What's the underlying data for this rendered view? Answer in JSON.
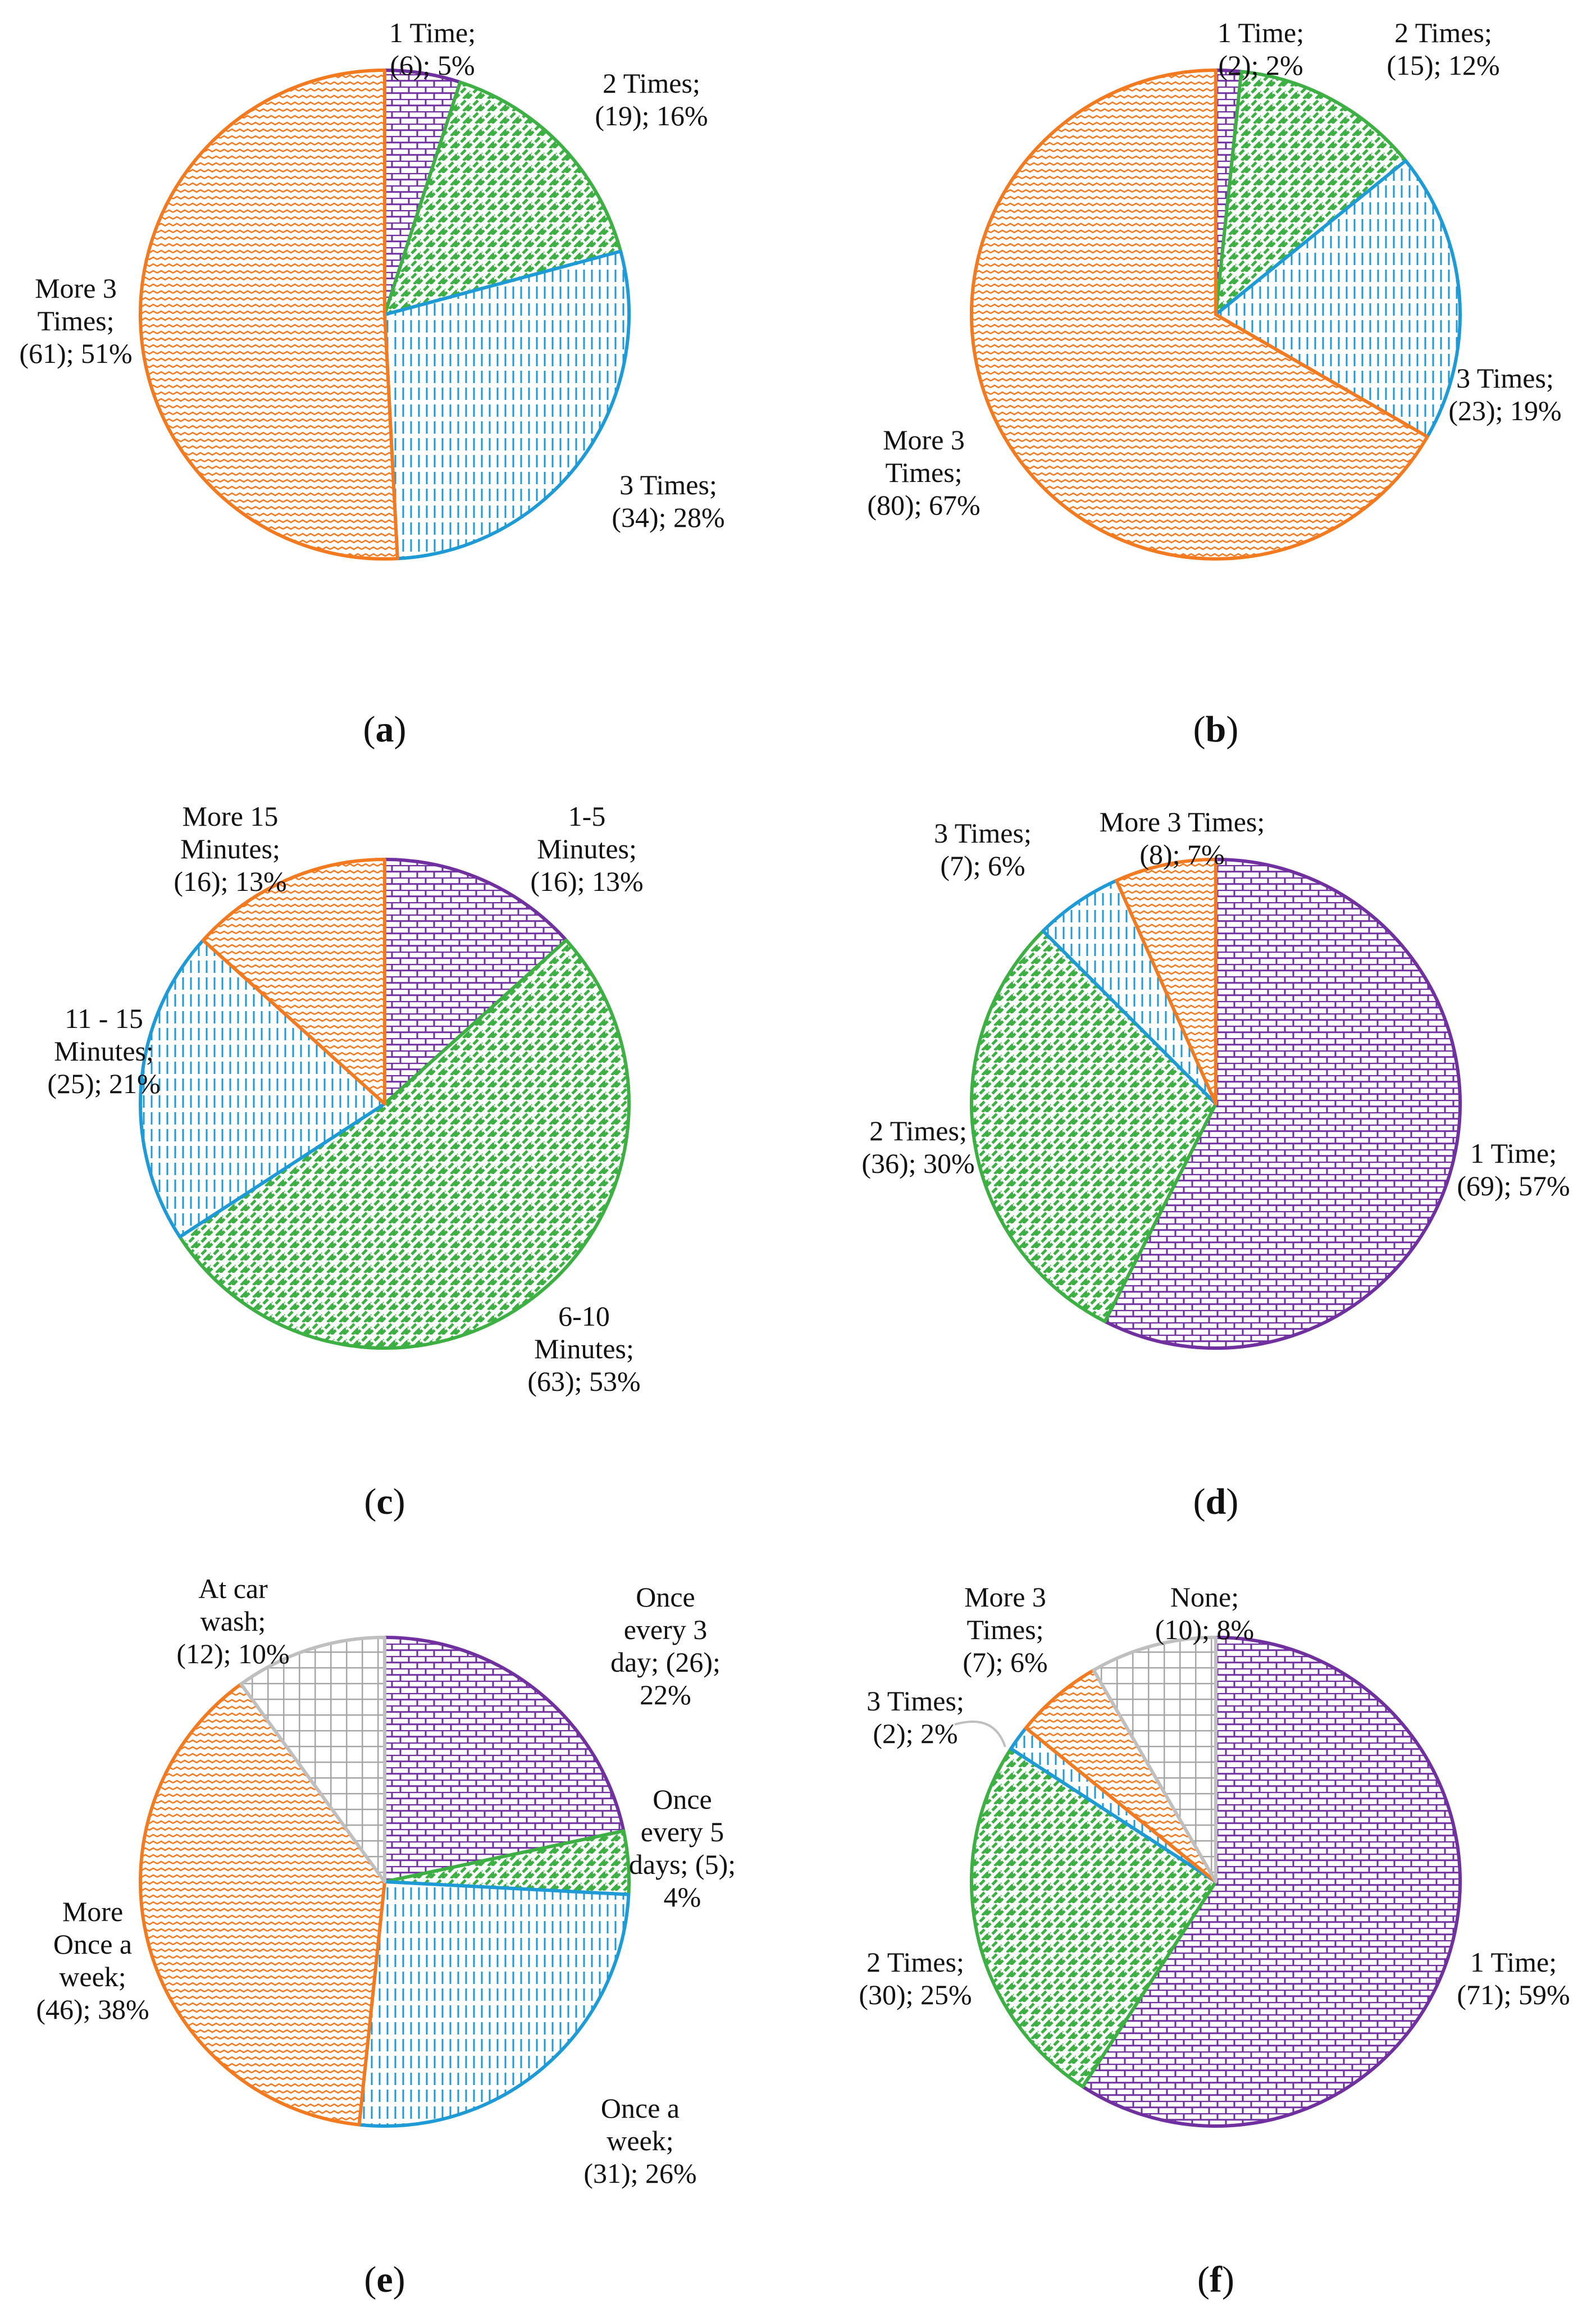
{
  "chart_data": [
    {
      "panel": "a",
      "type": "pie",
      "title": "",
      "slices": [
        {
          "label_lines": [
            "1 Time;",
            "(6); 5%"
          ],
          "count": 6,
          "percent": 5,
          "color": "#7030A0",
          "pattern": "brick-purple"
        },
        {
          "label_lines": [
            "2 Times;",
            "(19); 16%"
          ],
          "count": 19,
          "percent": 16,
          "color": "#3CB043",
          "pattern": "diag-green"
        },
        {
          "label_lines": [
            "3 Times;",
            "(34); 28%"
          ],
          "count": 34,
          "percent": 28,
          "color": "#1E9BD7",
          "pattern": "vert-blue"
        },
        {
          "label_lines": [
            "More 3",
            "Times;",
            "(61); 51%"
          ],
          "count": 61,
          "percent": 51,
          "color": "#F47A20",
          "pattern": "wave-orange"
        }
      ]
    },
    {
      "panel": "b",
      "type": "pie",
      "title": "",
      "slices": [
        {
          "label_lines": [
            "1 Time;",
            "(2); 2%"
          ],
          "count": 2,
          "percent": 2,
          "color": "#7030A0",
          "pattern": "brick-purple"
        },
        {
          "label_lines": [
            "2 Times;",
            "(15); 12%"
          ],
          "count": 15,
          "percent": 12,
          "color": "#3CB043",
          "pattern": "diag-green"
        },
        {
          "label_lines": [
            "3 Times;",
            "(23); 19%"
          ],
          "count": 23,
          "percent": 19,
          "color": "#1E9BD7",
          "pattern": "vert-blue"
        },
        {
          "label_lines": [
            "More 3",
            "Times;",
            "(80); 67%"
          ],
          "count": 80,
          "percent": 67,
          "color": "#F47A20",
          "pattern": "wave-orange"
        }
      ]
    },
    {
      "panel": "c",
      "type": "pie",
      "title": "",
      "slices": [
        {
          "label_lines": [
            "1-5",
            "Minutes;",
            "(16); 13%"
          ],
          "count": 16,
          "percent": 13,
          "color": "#7030A0",
          "pattern": "brick-purple"
        },
        {
          "label_lines": [
            "6-10",
            "Minutes;",
            "(63); 53%"
          ],
          "count": 63,
          "percent": 53,
          "color": "#3CB043",
          "pattern": "diag-green"
        },
        {
          "label_lines": [
            "11 - 15",
            "Minutes;",
            "(25); 21%"
          ],
          "count": 25,
          "percent": 21,
          "color": "#1E9BD7",
          "pattern": "vert-blue"
        },
        {
          "label_lines": [
            "More 15",
            "Minutes;",
            "(16); 13%"
          ],
          "count": 16,
          "percent": 13,
          "color": "#F47A20",
          "pattern": "wave-orange"
        }
      ]
    },
    {
      "panel": "d",
      "type": "pie",
      "title": "",
      "slices": [
        {
          "label_lines": [
            "1 Time;",
            "(69); 57%"
          ],
          "count": 69,
          "percent": 57,
          "color": "#7030A0",
          "pattern": "brick-purple"
        },
        {
          "label_lines": [
            "2 Times;",
            "(36); 30%"
          ],
          "count": 36,
          "percent": 30,
          "color": "#3CB043",
          "pattern": "diag-green"
        },
        {
          "label_lines": [
            "3 Times;",
            "(7); 6%"
          ],
          "count": 7,
          "percent": 6,
          "color": "#1E9BD7",
          "pattern": "vert-blue"
        },
        {
          "label_lines": [
            "More 3 Times;",
            "(8); 7%"
          ],
          "count": 8,
          "percent": 7,
          "color": "#F47A20",
          "pattern": "wave-orange"
        }
      ]
    },
    {
      "panel": "e",
      "type": "pie",
      "title": "",
      "slices": [
        {
          "label_lines": [
            "Once",
            "every 3",
            "day; (26);",
            "22%"
          ],
          "count": 26,
          "percent": 22,
          "color": "#7030A0",
          "pattern": "brick-purple"
        },
        {
          "label_lines": [
            "Once",
            "every 5",
            "days; (5);",
            "4%"
          ],
          "count": 5,
          "percent": 4,
          "color": "#3CB043",
          "pattern": "diag-green"
        },
        {
          "label_lines": [
            "Once a",
            "week;",
            "(31); 26%"
          ],
          "count": 31,
          "percent": 26,
          "color": "#1E9BD7",
          "pattern": "vert-blue"
        },
        {
          "label_lines": [
            "More",
            "Once a",
            "week;",
            "(46); 38%"
          ],
          "count": 46,
          "percent": 38,
          "color": "#F47A20",
          "pattern": "wave-orange"
        },
        {
          "label_lines": [
            "At car",
            "wash;",
            "(12); 10%"
          ],
          "count": 12,
          "percent": 10,
          "color": "#BFBFBF",
          "pattern": "grid-gray"
        }
      ]
    },
    {
      "panel": "f",
      "type": "pie",
      "title": "",
      "slices": [
        {
          "label_lines": [
            "1 Time;",
            "(71); 59%"
          ],
          "count": 71,
          "percent": 59,
          "color": "#7030A0",
          "pattern": "brick-purple"
        },
        {
          "label_lines": [
            "2 Times;",
            "(30); 25%"
          ],
          "count": 30,
          "percent": 25,
          "color": "#3CB043",
          "pattern": "diag-green"
        },
        {
          "label_lines": [
            "3 Times;",
            "(2); 2%"
          ],
          "count": 2,
          "percent": 2,
          "color": "#1E9BD7",
          "pattern": "vert-blue"
        },
        {
          "label_lines": [
            "More 3",
            "Times;",
            "(7); 6%"
          ],
          "count": 7,
          "percent": 6,
          "color": "#F47A20",
          "pattern": "wave-orange"
        },
        {
          "label_lines": [
            "None;",
            "(10); 8%"
          ],
          "count": 10,
          "percent": 8,
          "color": "#BFBFBF",
          "pattern": "grid-gray"
        }
      ]
    }
  ],
  "panel_labels": [
    "(a)",
    "(b)",
    "(c)",
    "(d)",
    "(e)",
    "(f)"
  ]
}
